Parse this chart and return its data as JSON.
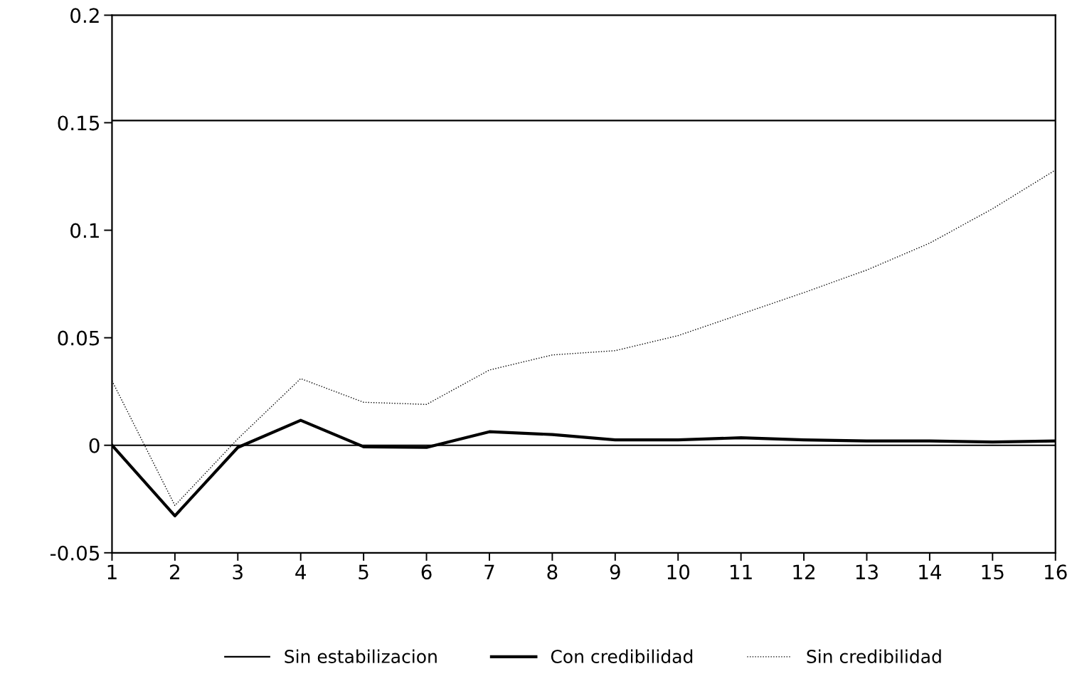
{
  "chart_data": {
    "type": "line",
    "x": [
      1,
      2,
      3,
      4,
      5,
      6,
      7,
      8,
      9,
      10,
      11,
      12,
      13,
      14,
      15,
      16
    ],
    "series": [
      {
        "name": "Sin estabilizacion",
        "color": "#000000",
        "line_style": "solid",
        "values": [
          0.151,
          0.151,
          0.151,
          0.151,
          0.151,
          0.151,
          0.151,
          0.151,
          0.151,
          0.151,
          0.151,
          0.151,
          0.151,
          0.151,
          0.151,
          0.151
        ]
      },
      {
        "name": "Con credibilidad",
        "color": "#000000",
        "line_style": "solid",
        "values": [
          0,
          -0.0328,
          -0.001,
          0.0116,
          -0.0007,
          -0.001,
          0.0063,
          0.005,
          0.0025,
          0.0025,
          0.0035,
          0.0025,
          0.002,
          0.002,
          0.0015,
          0.002
        ]
      },
      {
        "name": "Sin credibilidad",
        "color": "#000000",
        "line_style": "dotted",
        "values": [
          0.03,
          -0.028,
          0.003,
          0.031,
          0.02,
          0.019,
          0.035,
          0.042,
          0.044,
          0.051,
          0.061,
          0.071,
          0.0815,
          0.094,
          0.11,
          0.128
        ]
      }
    ],
    "xlim": [
      1,
      16
    ],
    "xticks": [
      1,
      2,
      3,
      4,
      5,
      6,
      7,
      8,
      9,
      10,
      11,
      12,
      13,
      14,
      15,
      16
    ],
    "ylim": [
      -0.05,
      0.2
    ],
    "yticks": [
      -0.05,
      0,
      0.05,
      0.1,
      0.15,
      0.2
    ],
    "ref_lines": [
      {
        "axis": "y",
        "value": 0,
        "color": "#000000",
        "line_style": "solid"
      }
    ],
    "grid": false,
    "legend": "bottom",
    "marker": "none"
  }
}
